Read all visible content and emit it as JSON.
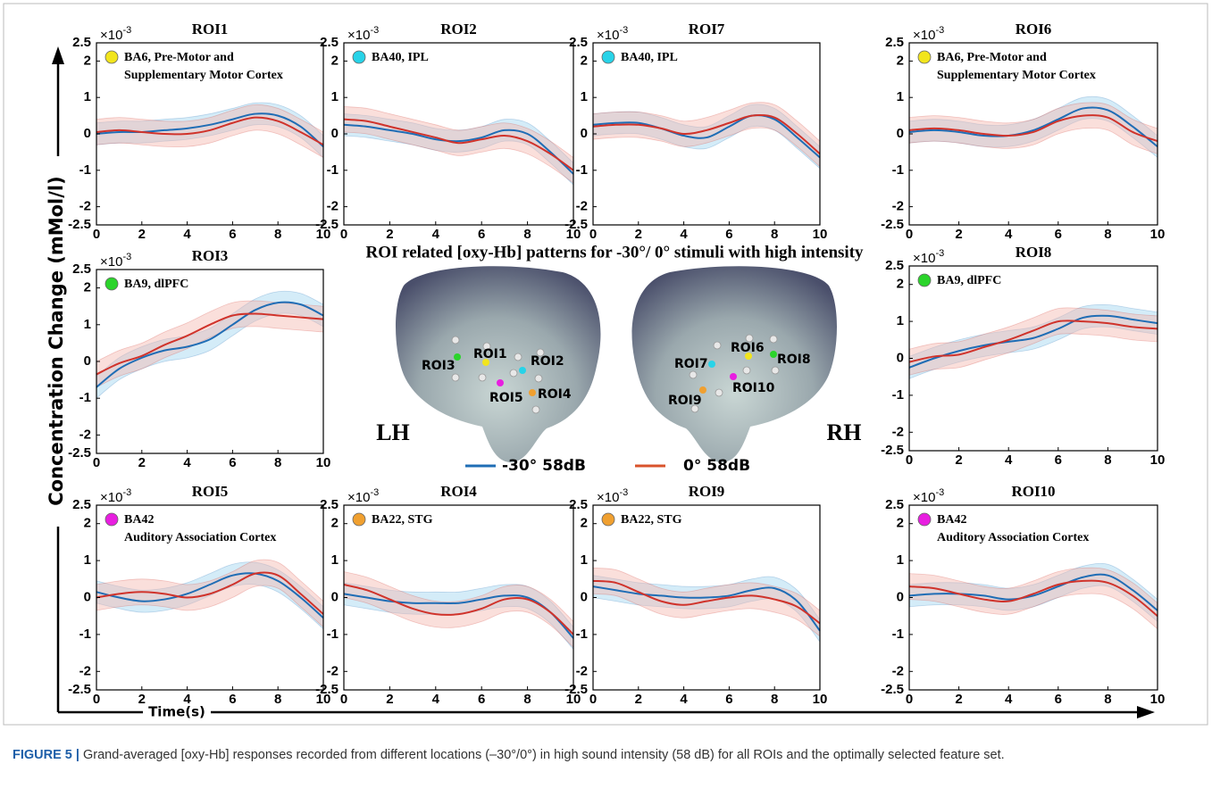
{
  "figure": {
    "center_title": "ROI related [oxy-Hb] patterns for -30°/ 0° stimuli with high intensity",
    "y_label": "Concentration Change (mMol/l)",
    "x_label": "Time(s)",
    "legend": [
      {
        "name": "-30° 58dB",
        "color": "#1f6db5"
      },
      {
        "name": "0° 58dB",
        "color": "#d9532b"
      }
    ],
    "brain": [
      {
        "label": "LH",
        "rois": [
          {
            "label": "ROI3",
            "color": "#2bd42b"
          },
          {
            "label": "ROI1",
            "color": "#f2e51d"
          },
          {
            "label": "ROI2",
            "color": "#27d3e8"
          },
          {
            "label": "ROI5",
            "color": "#e81ee0"
          },
          {
            "label": "ROI4",
            "color": "#f0a030"
          }
        ]
      },
      {
        "label": "RH",
        "rois": [
          {
            "label": "ROI6",
            "color": "#f2e51d"
          },
          {
            "label": "ROI8",
            "color": "#2bd42b"
          },
          {
            "label": "ROI7",
            "color": "#27d3e8"
          },
          {
            "label": "ROI10",
            "color": "#e81ee0"
          },
          {
            "label": "ROI9",
            "color": "#f0a030"
          }
        ]
      }
    ]
  },
  "caption": {
    "label": "FIGURE 5 |",
    "text": "Grand-averaged [oxy-Hb] responses recorded from different locations (–30°/0°) in high sound intensity (58 dB) for all ROIs and the optimally selected feature set."
  },
  "chart_data": [
    {
      "type": "line",
      "title": "ROI1",
      "region": [
        "BA6, Pre-Motor and",
        "Supplementary Motor Cortex"
      ],
      "region_color": "#f2e51d",
      "x": [
        0,
        1,
        2,
        3,
        4,
        5,
        6,
        7,
        8,
        9,
        10
      ],
      "xlim": [
        0,
        10
      ],
      "xticks": [
        0,
        2,
        4,
        6,
        8,
        10
      ],
      "ylim": [
        -2.5,
        2.5
      ],
      "yticks": [
        2.5,
        2,
        1,
        0,
        -1,
        -2,
        -2.5
      ],
      "y_multiplier": [
        "×10",
        "-3"
      ],
      "series": [
        {
          "color": "#1f6db5",
          "band_color": "#9fd5ef",
          "values": [
            0,
            0.05,
            0.05,
            0.1,
            0.15,
            0.25,
            0.4,
            0.55,
            0.5,
            0.2,
            -0.35
          ],
          "error": 0.3
        },
        {
          "color": "#d0332b",
          "band_color": "#f5b8b0",
          "values": [
            0.05,
            0.1,
            0.05,
            0,
            0,
            0.1,
            0.3,
            0.45,
            0.35,
            0.05,
            -0.3
          ],
          "error": 0.35
        }
      ]
    },
    {
      "type": "line",
      "title": "ROI2",
      "region": [
        "BA40, IPL"
      ],
      "region_color": "#27d3e8",
      "x": [
        0,
        1,
        2,
        3,
        4,
        5,
        6,
        7,
        8,
        9,
        10
      ],
      "xlim": [
        0,
        10
      ],
      "xticks": [
        0,
        2,
        4,
        6,
        8,
        10
      ],
      "ylim": [
        -2.5,
        2.5
      ],
      "yticks": [
        2.5,
        2,
        1,
        0,
        -1,
        -2,
        -2.5
      ],
      "y_multiplier": [
        "×10",
        "-3"
      ],
      "series": [
        {
          "color": "#1f6db5",
          "band_color": "#9fd5ef",
          "values": [
            0.25,
            0.2,
            0.1,
            0,
            -0.15,
            -0.2,
            -0.1,
            0.1,
            0,
            -0.5,
            -1.1
          ],
          "error": 0.3
        },
        {
          "color": "#d0332b",
          "band_color": "#f5b8b0",
          "values": [
            0.4,
            0.35,
            0.2,
            0.05,
            -0.1,
            -0.25,
            -0.15,
            -0.05,
            -0.2,
            -0.55,
            -1
          ],
          "error": 0.35
        }
      ]
    },
    {
      "type": "line",
      "title": "ROI7",
      "region": [
        "BA40, IPL"
      ],
      "region_color": "#27d3e8",
      "x": [
        0,
        1,
        2,
        3,
        4,
        5,
        6,
        7,
        8,
        9,
        10
      ],
      "xlim": [
        0,
        10
      ],
      "xticks": [
        0,
        2,
        4,
        6,
        8,
        10
      ],
      "ylim": [
        -2.5,
        2.5
      ],
      "yticks": [
        2.5,
        2,
        1,
        0,
        -1,
        -2,
        -2.5
      ],
      "y_multiplier": [
        "×10",
        "-3"
      ],
      "series": [
        {
          "color": "#1f6db5",
          "band_color": "#9fd5ef",
          "values": [
            0.25,
            0.3,
            0.3,
            0.15,
            -0.05,
            -0.1,
            0.2,
            0.5,
            0.4,
            -0.1,
            -0.65
          ],
          "error": 0.3
        },
        {
          "color": "#d0332b",
          "band_color": "#f5b8b0",
          "values": [
            0.2,
            0.25,
            0.25,
            0.15,
            0,
            0.1,
            0.3,
            0.5,
            0.45,
            0,
            -0.55
          ],
          "error": 0.35
        }
      ]
    },
    {
      "type": "line",
      "title": "ROI6",
      "region": [
        "BA6, Pre-Motor and",
        "Supplementary Motor Cortex"
      ],
      "region_color": "#f2e51d",
      "x": [
        0,
        1,
        2,
        3,
        4,
        5,
        6,
        7,
        8,
        9,
        10
      ],
      "xlim": [
        0,
        10
      ],
      "xticks": [
        0,
        2,
        4,
        6,
        8,
        10
      ],
      "ylim": [
        -2.5,
        2.5
      ],
      "yticks": [
        2.5,
        2,
        1,
        0,
        -1,
        -2,
        -2.5
      ],
      "y_multiplier": [
        "×10",
        "-3"
      ],
      "series": [
        {
          "color": "#1f6db5",
          "band_color": "#9fd5ef",
          "values": [
            0.05,
            0.1,
            0.05,
            -0.05,
            -0.05,
            0.1,
            0.4,
            0.7,
            0.65,
            0.2,
            -0.35
          ],
          "error": 0.3
        },
        {
          "color": "#d0332b",
          "band_color": "#f5b8b0",
          "values": [
            0.1,
            0.15,
            0.1,
            0,
            -0.05,
            0.05,
            0.35,
            0.5,
            0.45,
            0.05,
            -0.2
          ],
          "error": 0.35
        }
      ]
    },
    {
      "type": "line",
      "title": "ROI3",
      "region": [
        "BA9, dlPFC"
      ],
      "region_color": "#2bd42b",
      "x": [
        0,
        1,
        2,
        3,
        4,
        5,
        6,
        7,
        8,
        9,
        10
      ],
      "xlim": [
        0,
        10
      ],
      "xticks": [
        0,
        2,
        4,
        6,
        8,
        10
      ],
      "ylim": [
        -2.5,
        2.5
      ],
      "yticks": [
        2.5,
        2,
        1,
        0,
        -1,
        -2,
        -2.5
      ],
      "y_multiplier": [
        "×10",
        "-3"
      ],
      "series": [
        {
          "color": "#1f6db5",
          "band_color": "#9fd5ef",
          "values": [
            -0.7,
            -0.2,
            0.1,
            0.3,
            0.4,
            0.6,
            1,
            1.4,
            1.6,
            1.55,
            1.25
          ],
          "error": 0.3
        },
        {
          "color": "#d0332b",
          "band_color": "#f5b8b0",
          "values": [
            -0.35,
            -0.05,
            0.15,
            0.45,
            0.7,
            1,
            1.25,
            1.3,
            1.25,
            1.2,
            1.15
          ],
          "error": 0.35
        }
      ]
    },
    {
      "type": "line",
      "title": "ROI8",
      "region": [
        "BA9, dlPFC"
      ],
      "region_color": "#2bd42b",
      "x": [
        0,
        1,
        2,
        3,
        4,
        5,
        6,
        7,
        8,
        9,
        10
      ],
      "xlim": [
        0,
        10
      ],
      "xticks": [
        0,
        2,
        4,
        6,
        8,
        10
      ],
      "ylim": [
        -2.5,
        2.5
      ],
      "yticks": [
        2.5,
        2,
        1,
        0,
        -1,
        -2,
        -2.5
      ],
      "y_multiplier": [
        "×10",
        "-3"
      ],
      "series": [
        {
          "color": "#1f6db5",
          "band_color": "#9fd5ef",
          "values": [
            -0.25,
            0,
            0.2,
            0.35,
            0.45,
            0.55,
            0.8,
            1.1,
            1.15,
            1.05,
            0.95
          ],
          "error": 0.3
        },
        {
          "color": "#d0332b",
          "band_color": "#f5b8b0",
          "values": [
            -0.1,
            0.05,
            0.1,
            0.3,
            0.5,
            0.75,
            1,
            1,
            0.95,
            0.85,
            0.8
          ],
          "error": 0.35
        }
      ]
    },
    {
      "type": "line",
      "title": "ROI5",
      "region": [
        "BA42",
        "Auditory Association Cortex"
      ],
      "region_color": "#e81ee0",
      "x": [
        0,
        1,
        2,
        3,
        4,
        5,
        6,
        7,
        8,
        9,
        10
      ],
      "xlim": [
        0,
        10
      ],
      "xticks": [
        0,
        2,
        4,
        6,
        8,
        10
      ],
      "ylim": [
        -2.5,
        2.5
      ],
      "yticks": [
        2.5,
        2,
        1,
        0,
        -1,
        -2,
        -2.5
      ],
      "y_multiplier": [
        "×10",
        "-3"
      ],
      "series": [
        {
          "color": "#1f6db5",
          "band_color": "#9fd5ef",
          "values": [
            0.15,
            0,
            -0.1,
            -0.05,
            0.1,
            0.35,
            0.6,
            0.65,
            0.45,
            0,
            -0.55
          ],
          "error": 0.3
        },
        {
          "color": "#d0332b",
          "band_color": "#f5b8b0",
          "values": [
            0,
            0.1,
            0.15,
            0.1,
            0,
            0.1,
            0.35,
            0.65,
            0.6,
            0.1,
            -0.45
          ],
          "error": 0.35
        }
      ]
    },
    {
      "type": "line",
      "title": "ROI4",
      "region": [
        "BA22, STG"
      ],
      "region_color": "#f0a030",
      "x": [
        0,
        1,
        2,
        3,
        4,
        5,
        6,
        7,
        8,
        9,
        10
      ],
      "xlim": [
        0,
        10
      ],
      "xticks": [
        0,
        2,
        4,
        6,
        8,
        10
      ],
      "ylim": [
        -2.5,
        2.5
      ],
      "yticks": [
        2.5,
        2,
        1,
        0,
        -1,
        -2,
        -2.5
      ],
      "y_multiplier": [
        "×10",
        "-3"
      ],
      "series": [
        {
          "color": "#1f6db5",
          "band_color": "#9fd5ef",
          "values": [
            0.1,
            0,
            -0.1,
            -0.15,
            -0.15,
            -0.15,
            -0.05,
            0.05,
            0,
            -0.4,
            -1.1
          ],
          "error": 0.3
        },
        {
          "color": "#d0332b",
          "band_color": "#f5b8b0",
          "values": [
            0.35,
            0.2,
            -0.05,
            -0.3,
            -0.45,
            -0.45,
            -0.3,
            -0.05,
            -0.05,
            -0.4,
            -1
          ],
          "error": 0.35
        }
      ]
    },
    {
      "type": "line",
      "title": "ROI9",
      "region": [
        "BA22, STG"
      ],
      "region_color": "#f0a030",
      "x": [
        0,
        1,
        2,
        3,
        4,
        5,
        6,
        7,
        8,
        9,
        10
      ],
      "xlim": [
        0,
        10
      ],
      "xticks": [
        0,
        2,
        4,
        6,
        8,
        10
      ],
      "ylim": [
        -2.5,
        2.5
      ],
      "yticks": [
        2.5,
        2,
        1,
        0,
        -1,
        -2,
        -2.5
      ],
      "y_multiplier": [
        "×10",
        "-3"
      ],
      "series": [
        {
          "color": "#1f6db5",
          "band_color": "#9fd5ef",
          "values": [
            0.3,
            0.2,
            0.1,
            0.05,
            0,
            0,
            0.05,
            0.2,
            0.25,
            -0.1,
            -0.9
          ],
          "error": 0.3
        },
        {
          "color": "#d0332b",
          "band_color": "#f5b8b0",
          "values": [
            0.45,
            0.4,
            0.15,
            -0.1,
            -0.2,
            -0.1,
            0,
            0.05,
            -0.05,
            -0.25,
            -0.7
          ],
          "error": 0.35
        }
      ]
    },
    {
      "type": "line",
      "title": "ROI10",
      "region": [
        "BA42",
        "Auditory Association Cortex"
      ],
      "region_color": "#e81ee0",
      "x": [
        0,
        1,
        2,
        3,
        4,
        5,
        6,
        7,
        8,
        9,
        10
      ],
      "xlim": [
        0,
        10
      ],
      "xticks": [
        0,
        2,
        4,
        6,
        8,
        10
      ],
      "ylim": [
        -2.5,
        2.5
      ],
      "yticks": [
        2.5,
        2,
        1,
        0,
        -1,
        -2,
        -2.5
      ],
      "y_multiplier": [
        "×10",
        "-3"
      ],
      "series": [
        {
          "color": "#1f6db5",
          "band_color": "#9fd5ef",
          "values": [
            0.05,
            0.1,
            0.1,
            0.05,
            -0.05,
            0.05,
            0.3,
            0.55,
            0.6,
            0.2,
            -0.35
          ],
          "error": 0.3
        },
        {
          "color": "#d0332b",
          "band_color": "#f5b8b0",
          "values": [
            0.3,
            0.25,
            0.1,
            -0.05,
            -0.1,
            0.1,
            0.35,
            0.45,
            0.4,
            0.05,
            -0.5
          ],
          "error": 0.35
        }
      ]
    }
  ]
}
